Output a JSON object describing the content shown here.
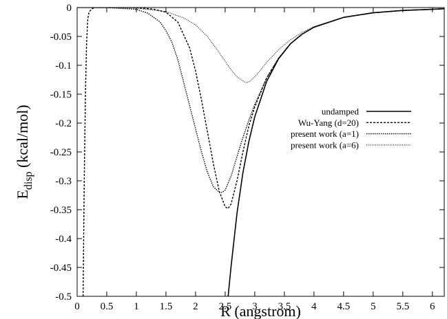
{
  "chart_data": {
    "type": "line",
    "title": "",
    "xlabel": "R (angstrom)",
    "ylabel": {
      "main": "E",
      "subscript": "disp",
      "rest": " (kcal/mol)"
    },
    "xlim": [
      0,
      6.2
    ],
    "ylim": [
      -0.5,
      0
    ],
    "x_ticks": [
      0,
      0.5,
      1,
      1.5,
      2,
      2.5,
      3,
      3.5,
      4,
      4.5,
      5,
      5.5,
      6
    ],
    "x_tick_labels": [
      "0",
      "0.5",
      "1",
      "1.5",
      "2",
      "2.5",
      "3",
      "3.5",
      "4",
      "4.5",
      "5",
      "5.5",
      "6"
    ],
    "y_ticks": [
      0,
      -0.05,
      -0.1,
      -0.15,
      -0.2,
      -0.25,
      -0.3,
      -0.35,
      -0.4,
      -0.45,
      -0.5
    ],
    "y_tick_labels": [
      "0",
      "-0.05",
      "-0.1",
      "-0.15",
      "-0.2",
      "-0.25",
      "-0.3",
      "-0.35",
      "-0.4",
      "-0.45",
      "-0.5"
    ],
    "grid": false,
    "legend_position": "right",
    "series": [
      {
        "name": "undamped",
        "style": "solid",
        "x": [
          2.55,
          2.6,
          2.7,
          2.8,
          2.9,
          3.0,
          3.2,
          3.4,
          3.6,
          3.8,
          4.0,
          4.5,
          5.0,
          5.5,
          6.0,
          6.2
        ],
        "y": [
          -0.5,
          -0.448,
          -0.356,
          -0.286,
          -0.232,
          -0.189,
          -0.128,
          -0.089,
          -0.063,
          -0.046,
          -0.034,
          -0.017,
          -0.009,
          -0.005,
          -0.003,
          -0.002
        ]
      },
      {
        "name": "Wu-Yang (d=20)",
        "style": "dashed",
        "x": [
          0.1,
          0.12,
          0.14,
          0.16,
          0.18,
          0.2,
          0.25,
          0.3,
          0.5,
          1.0,
          1.3,
          1.5,
          1.7,
          1.9,
          2.0,
          2.1,
          2.2,
          2.3,
          2.4,
          2.5,
          2.55,
          2.6,
          2.7,
          2.8,
          2.9,
          3.0,
          3.2,
          3.4,
          3.6,
          3.8,
          4.0,
          4.5,
          5.0,
          5.5,
          6.0,
          6.2
        ],
        "y": [
          -0.5,
          -0.3,
          -0.15,
          -0.06,
          -0.02,
          -0.008,
          -0.002,
          0.0,
          0.0,
          0.0,
          -0.003,
          -0.008,
          -0.025,
          -0.07,
          -0.11,
          -0.16,
          -0.215,
          -0.27,
          -0.318,
          -0.345,
          -0.348,
          -0.34,
          -0.3,
          -0.25,
          -0.205,
          -0.172,
          -0.122,
          -0.088,
          -0.063,
          -0.046,
          -0.034,
          -0.017,
          -0.009,
          -0.005,
          -0.003,
          -0.002
        ]
      },
      {
        "name": "present work (a=1)",
        "style": "dotted-dense",
        "x": [
          0,
          0.5,
          1.0,
          1.2,
          1.4,
          1.5,
          1.6,
          1.7,
          1.8,
          1.9,
          2.0,
          2.1,
          2.2,
          2.3,
          2.4,
          2.45,
          2.5,
          2.6,
          2.7,
          2.8,
          2.9,
          3.0,
          3.2,
          3.4,
          3.6,
          3.8,
          4.0,
          4.5,
          5.0,
          5.5,
          6.0,
          6.2
        ],
        "y": [
          0.0,
          0.0,
          -0.003,
          -0.01,
          -0.025,
          -0.04,
          -0.06,
          -0.09,
          -0.13,
          -0.17,
          -0.21,
          -0.25,
          -0.285,
          -0.31,
          -0.32,
          -0.32,
          -0.316,
          -0.292,
          -0.258,
          -0.225,
          -0.195,
          -0.168,
          -0.122,
          -0.088,
          -0.063,
          -0.046,
          -0.034,
          -0.017,
          -0.009,
          -0.005,
          -0.003,
          -0.002
        ]
      },
      {
        "name": "present work (a=6)",
        "style": "dotted-fine",
        "x": [
          0,
          0.5,
          1.0,
          1.5,
          1.8,
          2.0,
          2.2,
          2.4,
          2.6,
          2.7,
          2.8,
          2.85,
          2.9,
          3.0,
          3.1,
          3.2,
          3.4,
          3.6,
          3.8,
          4.0,
          4.5,
          5.0,
          5.5,
          6.0,
          6.2
        ],
        "y": [
          0.0,
          0.0,
          -0.001,
          -0.007,
          -0.018,
          -0.03,
          -0.05,
          -0.078,
          -0.108,
          -0.12,
          -0.127,
          -0.13,
          -0.129,
          -0.12,
          -0.108,
          -0.095,
          -0.073,
          -0.056,
          -0.043,
          -0.033,
          -0.017,
          -0.009,
          -0.005,
          -0.003,
          -0.002
        ]
      }
    ]
  }
}
